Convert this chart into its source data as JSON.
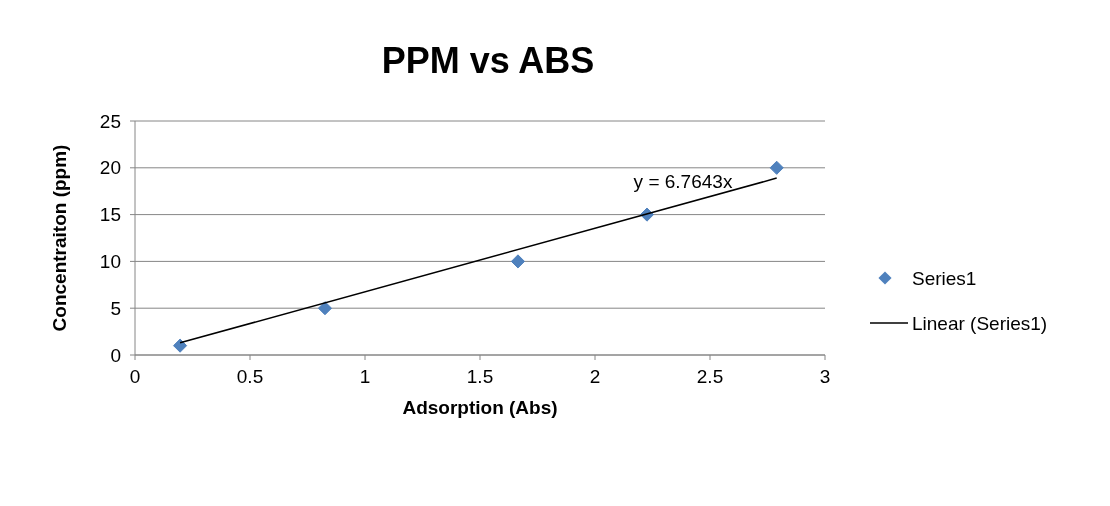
{
  "chart_data": {
    "type": "scatter",
    "title": "PPM vs ABS",
    "xlabel": "Adsorption (Abs)",
    "ylabel": "Concentraiton (ppm)",
    "xlim": [
      0,
      3
    ],
    "xticks": [
      0,
      0.5,
      1,
      1.5,
      2,
      2.5,
      3
    ],
    "ylim": [
      0,
      25
    ],
    "yticks": [
      0,
      5,
      10,
      15,
      20,
      25
    ],
    "grid": "y",
    "legend": "right",
    "series": [
      {
        "name": "Series1",
        "color": "#4f81bd",
        "marker": "diamond",
        "x": [
          0.196,
          0.826,
          1.665,
          2.226,
          2.79
        ],
        "values": [
          1,
          5,
          10,
          15,
          20
        ]
      },
      {
        "name": "Linear (Series1)",
        "type": "line",
        "color": "#000000",
        "line_style": "solid",
        "x": [
          0.196,
          2.79
        ],
        "values": [
          1.3,
          18.9
        ]
      }
    ],
    "annotations": [
      "y = 6.7643x"
    ]
  }
}
